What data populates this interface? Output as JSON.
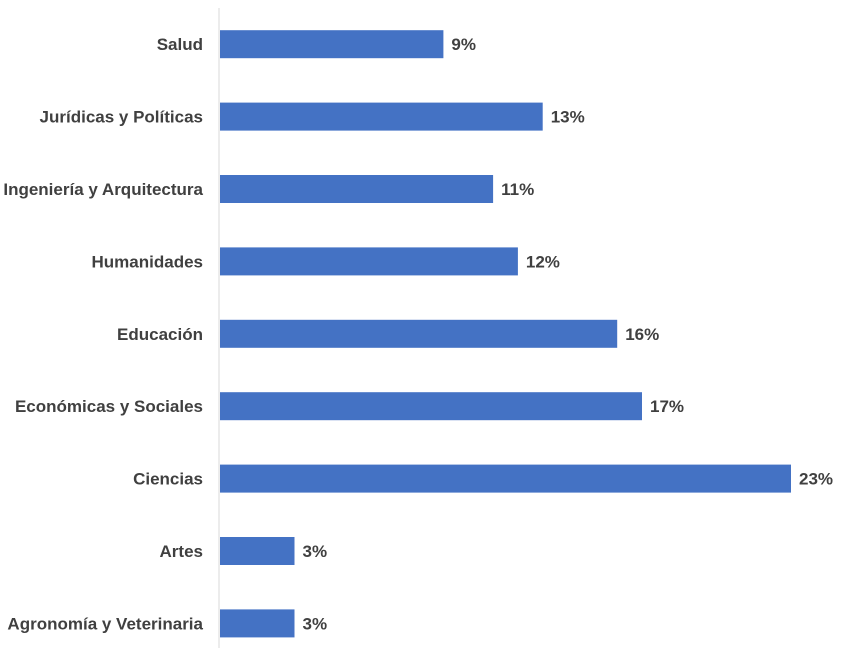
{
  "chart_data": {
    "type": "bar",
    "orientation": "horizontal",
    "title": "",
    "xlabel": "",
    "ylabel": "",
    "categories": [
      "Salud",
      "Jurídicas y Políticas",
      "Ingeniería y Arquitectura",
      "Humanidades",
      "Educación",
      "Económicas y Sociales",
      "Ciencias",
      "Artes",
      "Agronomía y Veterinaria"
    ],
    "values": [
      9,
      13,
      11,
      12,
      16,
      17,
      23,
      3,
      3
    ],
    "value_labels": [
      "9%",
      "13%",
      "11%",
      "12%",
      "16%",
      "17%",
      "23%",
      "3%",
      "3%"
    ],
    "unit": "%",
    "xlim": [
      0,
      23
    ],
    "grid": false,
    "legend": "none",
    "bar_color": "#4472C4",
    "axis_color": "#D9D9D9",
    "text_color": "#404040"
  }
}
